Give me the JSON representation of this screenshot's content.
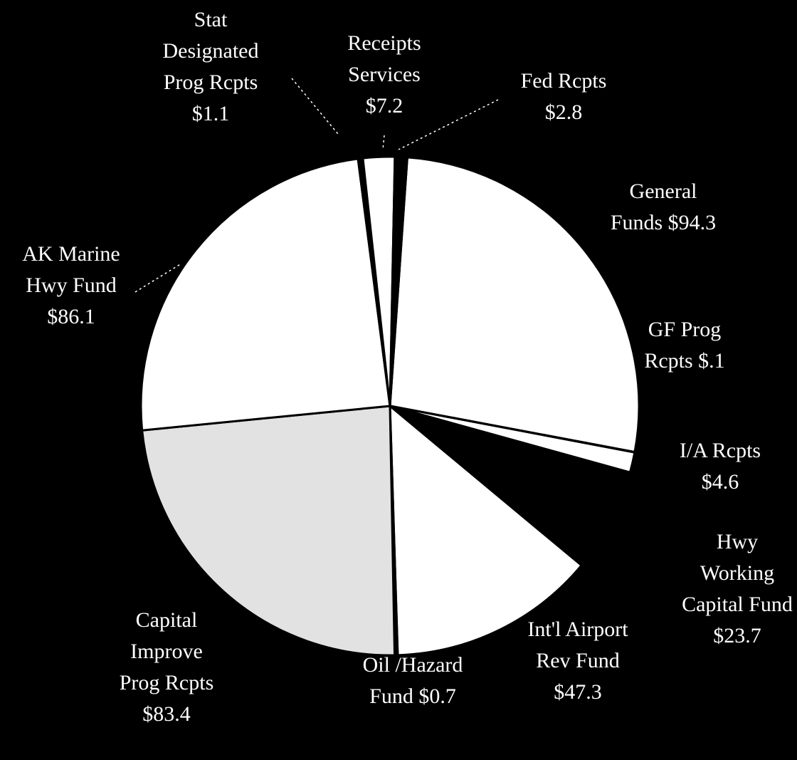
{
  "chart_data": {
    "type": "pie",
    "title": "",
    "slices": [
      {
        "label_lines": [
          "General",
          "Funds $94.3"
        ],
        "value": 94.3,
        "color": "#ffffff"
      },
      {
        "label_lines": [
          "GF Prog",
          "Rcpts $.1"
        ],
        "value": 0.1,
        "color": "#ffffff"
      },
      {
        "label_lines": [
          "I/A Rcpts",
          "$4.6"
        ],
        "value": 4.6,
        "color": "#ffffff"
      },
      {
        "label_lines": [
          "Hwy",
          "Working",
          "Capital Fund",
          "$23.7"
        ],
        "value": 23.7,
        "color": "#000000"
      },
      {
        "label_lines": [
          "Int'l Airport",
          "Rev Fund",
          "$47.3"
        ],
        "value": 47.3,
        "color": "#ffffff"
      },
      {
        "label_lines": [
          "Oil /Hazard",
          "Fund $0.7"
        ],
        "value": 0.7,
        "color": "#000000"
      },
      {
        "label_lines": [
          "Capital",
          "Improve",
          "Prog Rcpts",
          "$83.4"
        ],
        "value": 83.4,
        "color": "#e2e2e2"
      },
      {
        "label_lines": [
          "AK Marine",
          "Hwy Fund",
          "$86.1"
        ],
        "value": 86.1,
        "color": "#ffffff"
      },
      {
        "label_lines": [
          "Stat",
          "Designated",
          "Prog Rcpts",
          "$1.1"
        ],
        "value": 1.1,
        "color": "#000000"
      },
      {
        "label_lines": [
          "Receipts",
          "Services",
          "$7.2"
        ],
        "value": 7.2,
        "color": "#ffffff"
      },
      {
        "label_lines": [
          "Fed Rcpts",
          "$2.8"
        ],
        "value": 2.8,
        "color": "#000000"
      }
    ],
    "legend": "none",
    "background": "#000000"
  }
}
